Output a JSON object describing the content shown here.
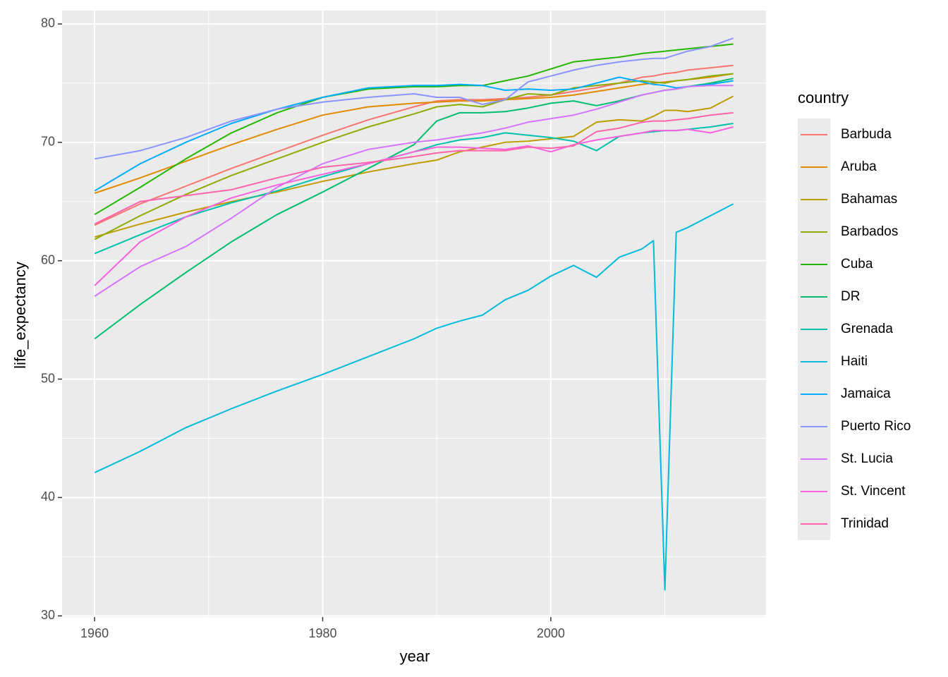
{
  "chart_data": {
    "type": "line",
    "x_label": "year",
    "y_label": "life_expectancy",
    "legend_title": "country",
    "x": [
      1960,
      1964,
      1968,
      1972,
      1976,
      1980,
      1984,
      1988,
      1990,
      1992,
      1994,
      1996,
      1998,
      2000,
      2002,
      2004,
      2006,
      2008,
      2009,
      2010,
      2011,
      2012,
      2014,
      2016
    ],
    "xlim": [
      1957.15,
      2018.87
    ],
    "xticks": [
      1960,
      1980,
      2000
    ],
    "xminor_ticks": [
      1970,
      1990,
      2010
    ],
    "ylim": [
      29.9,
      81.13
    ],
    "yticks": [
      30,
      40,
      50,
      60,
      70,
      80
    ],
    "yminor_ticks": [
      35,
      45,
      55,
      65,
      75
    ],
    "grid": true,
    "legend": "right",
    "series": [
      {
        "name": "Barbuda",
        "color": "#F8766D",
        "values": [
          63.0,
          64.8,
          66.3,
          67.8,
          69.2,
          70.6,
          71.9,
          73.0,
          73.5,
          73.6,
          73.6,
          73.7,
          73.8,
          74.0,
          74.3,
          74.6,
          75.0,
          75.5,
          75.6,
          75.8,
          75.9,
          76.1,
          76.3,
          76.5
        ]
      },
      {
        "name": "Aruba",
        "color": "#E18A00",
        "values": [
          65.7,
          67.0,
          68.4,
          69.8,
          71.1,
          72.3,
          73.0,
          73.3,
          73.4,
          73.5,
          73.5,
          73.6,
          73.7,
          73.8,
          74.0,
          74.3,
          74.6,
          74.9,
          75.0,
          75.1,
          75.2,
          75.3,
          75.5,
          75.8
        ]
      },
      {
        "name": "Bahamas",
        "color": "#BE9C00",
        "values": [
          62.0,
          63.1,
          64.1,
          65.0,
          65.8,
          66.7,
          67.5,
          68.2,
          68.5,
          69.2,
          69.6,
          70.0,
          70.1,
          70.3,
          70.5,
          71.7,
          71.9,
          71.8,
          72.2,
          72.7,
          72.7,
          72.6,
          72.9,
          73.9
        ]
      },
      {
        "name": "Barbados",
        "color": "#8CAB00",
        "values": [
          61.8,
          63.8,
          65.6,
          67.2,
          68.6,
          70.0,
          71.3,
          72.4,
          73.0,
          73.2,
          73.0,
          73.6,
          74.1,
          74.0,
          74.6,
          74.8,
          75.0,
          75.2,
          75.1,
          75.0,
          75.2,
          75.3,
          75.6,
          75.8
        ]
      },
      {
        "name": "Cuba",
        "color": "#24B700",
        "values": [
          63.9,
          66.2,
          68.6,
          70.8,
          72.5,
          73.8,
          74.5,
          74.7,
          74.7,
          74.8,
          74.8,
          75.2,
          75.6,
          76.2,
          76.8,
          77.0,
          77.2,
          77.5,
          77.6,
          77.7,
          77.8,
          77.9,
          78.1,
          78.3
        ]
      },
      {
        "name": "DR",
        "color": "#00BE70",
        "values": [
          53.4,
          56.3,
          59.0,
          61.6,
          63.9,
          65.8,
          67.8,
          69.8,
          71.8,
          72.5,
          72.5,
          72.6,
          72.9,
          73.3,
          73.5,
          73.1,
          73.5,
          74.0,
          74.2,
          74.4,
          74.5,
          74.7,
          75.0,
          75.4
        ]
      },
      {
        "name": "Grenada",
        "color": "#00C1AB",
        "values": [
          60.6,
          62.2,
          63.7,
          64.9,
          65.9,
          67.1,
          68.2,
          69.2,
          69.8,
          70.2,
          70.4,
          70.8,
          70.6,
          70.4,
          70.1,
          69.3,
          70.5,
          70.8,
          70.9,
          71.0,
          71.0,
          71.1,
          71.3,
          71.6
        ]
      },
      {
        "name": "Haiti",
        "color": "#00BBDA",
        "values": [
          42.1,
          43.9,
          45.9,
          47.5,
          49.0,
          50.4,
          51.9,
          53.4,
          54.3,
          54.9,
          55.4,
          56.7,
          57.5,
          58.7,
          59.6,
          58.6,
          60.3,
          61.0,
          61.7,
          32.2,
          62.4,
          62.8,
          63.8,
          64.8
        ]
      },
      {
        "name": "Jamaica",
        "color": "#00ACFC",
        "values": [
          65.9,
          68.2,
          70.0,
          71.6,
          72.8,
          73.8,
          74.6,
          74.8,
          74.8,
          74.9,
          74.8,
          74.4,
          74.5,
          74.4,
          74.5,
          75.0,
          75.5,
          75.1,
          74.9,
          74.8,
          74.6,
          74.7,
          74.9,
          75.2
        ]
      },
      {
        "name": "Puerto Rico",
        "color": "#8B93FF",
        "values": [
          68.6,
          69.3,
          70.4,
          71.8,
          72.8,
          73.4,
          73.8,
          74.1,
          73.8,
          73.8,
          73.2,
          73.6,
          75.1,
          75.6,
          76.1,
          76.5,
          76.8,
          77.0,
          77.1,
          77.1,
          77.4,
          77.7,
          78.1,
          78.8
        ]
      },
      {
        "name": "St. Lucia",
        "color": "#D575FE",
        "values": [
          57.0,
          59.5,
          61.2,
          63.6,
          66.2,
          68.2,
          69.4,
          70.0,
          70.2,
          70.5,
          70.8,
          71.2,
          71.7,
          72.0,
          72.3,
          72.8,
          73.4,
          74.0,
          74.2,
          74.4,
          74.5,
          74.7,
          74.8,
          74.8
        ]
      },
      {
        "name": "St. Vincent",
        "color": "#F962DD",
        "values": [
          57.9,
          61.6,
          63.7,
          65.3,
          66.4,
          67.3,
          68.2,
          69.2,
          69.6,
          69.6,
          69.5,
          69.4,
          69.7,
          69.2,
          69.8,
          70.2,
          70.5,
          70.8,
          71.0,
          71.0,
          71.0,
          71.1,
          70.8,
          71.3
        ]
      },
      {
        "name": "Trinidad",
        "color": "#FF65AC",
        "values": [
          63.1,
          65.0,
          65.5,
          66.0,
          67.0,
          67.9,
          68.3,
          68.8,
          69.1,
          69.3,
          69.3,
          69.3,
          69.6,
          69.5,
          69.7,
          70.9,
          71.2,
          71.7,
          71.8,
          71.8,
          71.9,
          72.0,
          72.3,
          72.5
        ]
      }
    ]
  }
}
